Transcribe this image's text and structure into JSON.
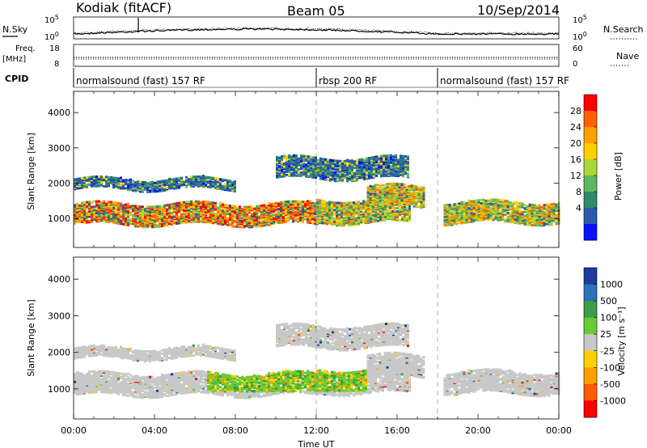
{
  "header": {
    "station": "Kodiak (fitACF)",
    "beam": "Beam 05",
    "date": "10/Sep/2014"
  },
  "top_panels": {
    "nsky_label": "N.Sky",
    "nsearch_label": "N.Search",
    "freq_label": "Freq.",
    "freq_unit": "[MHz]",
    "nave_label": "Nave",
    "cpid_label": "CPID",
    "nsky_ticks": [
      "10^5",
      "10^0"
    ],
    "nsearch_ticks": [
      "10^5",
      "10^0"
    ],
    "freq_ticks": [
      "18",
      "8"
    ],
    "nave_ticks": [
      "60",
      "0"
    ]
  },
  "cpid_segments": [
    {
      "start_hour": 0,
      "end_hour": 12,
      "label": "normalsound (fast) 157 RF"
    },
    {
      "start_hour": 12,
      "end_hour": 18,
      "label": "rbsp 200 RF"
    },
    {
      "start_hour": 18,
      "end_hour": 24,
      "label": "normalsound (fast) 157 RF"
    }
  ],
  "chart_data": [
    {
      "type": "heatmap",
      "name": "power",
      "ylabel": "Slant Range [km]",
      "colorbar_label": "Power [dB]",
      "colorbar_ticks": [
        "28",
        "24",
        "20",
        "16",
        "12",
        "8",
        "4"
      ],
      "colorbar_colors": [
        "#ff0000",
        "#ff6000",
        "#ff9f00",
        "#ffd000",
        "#a8d838",
        "#5cb860",
        "#2e8a6a",
        "#2a5aa8",
        "#0a10ff"
      ],
      "ylim": [
        180,
        4600
      ],
      "yticks": [
        "1000",
        "2000",
        "3000",
        "4000"
      ],
      "xlim_hours": [
        0,
        24
      ],
      "bands": [
        {
          "start_hour": 0.0,
          "end_hour": 12.0,
          "low_km": 800,
          "high_km": 1400,
          "level": "high"
        },
        {
          "start_hour": 12.0,
          "end_hour": 16.6,
          "low_km": 850,
          "high_km": 1500,
          "level": "mid"
        },
        {
          "start_hour": 18.3,
          "end_hour": 24.0,
          "low_km": 850,
          "high_km": 1450,
          "level": "mid"
        },
        {
          "start_hour": 0.0,
          "end_hour": 8.0,
          "low_km": 1800,
          "high_km": 2100,
          "level": "low"
        },
        {
          "start_hour": 10.0,
          "end_hour": 16.5,
          "low_km": 2100,
          "high_km": 2700,
          "level": "low"
        },
        {
          "start_hour": 14.5,
          "end_hour": 17.3,
          "low_km": 1300,
          "high_km": 1900,
          "level": "mid"
        }
      ]
    },
    {
      "type": "heatmap",
      "name": "velocity",
      "ylabel": "Slant Range [km]",
      "xlabel": "Time UT",
      "colorbar_label": "Velocity [m s⁻¹]",
      "colorbar_ticks": [
        "1000",
        "500",
        "100",
        "25",
        "-25",
        "-100",
        "-500",
        "-1000"
      ],
      "colorbar_colors": [
        "#1c3aa0",
        "#2b72b8",
        "#3c9c4a",
        "#66cc33",
        "#c8c8c8",
        "#ffd000",
        "#ff9f00",
        "#ff5a00",
        "#ff0000"
      ],
      "ylim": [
        180,
        4600
      ],
      "yticks": [
        "1000",
        "2000",
        "3000",
        "4000"
      ],
      "xticks": [
        "00:00",
        "04:00",
        "08:00",
        "12:00",
        "16:00",
        "20:00",
        "00:00"
      ],
      "xlim_hours": [
        0,
        24
      ]
    }
  ]
}
